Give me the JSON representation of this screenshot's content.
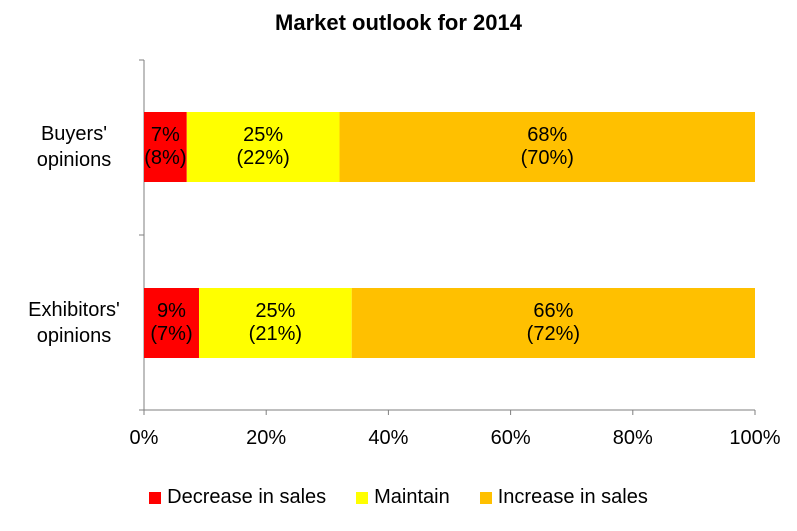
{
  "chart_data": {
    "type": "bar",
    "orientation": "horizontal",
    "stacked": true,
    "title": "Market outlook for 2014",
    "categories": [
      "Buyers' opinions",
      "Exhibitors' opinions"
    ],
    "category_lines": [
      [
        "Buyers'",
        "opinions"
      ],
      [
        "Exhibitors'",
        "opinions"
      ]
    ],
    "series": [
      {
        "name": "Decrease in sales",
        "color": "#FF0000",
        "values": [
          7,
          9
        ],
        "secondary_values": [
          8,
          7
        ]
      },
      {
        "name": "Maintain",
        "color": "#FFFF00",
        "values": [
          25,
          25
        ],
        "secondary_values": [
          22,
          21
        ]
      },
      {
        "name": "Increase in sales",
        "color": "#FFC000",
        "values": [
          68,
          66
        ],
        "secondary_values": [
          70,
          72
        ]
      }
    ],
    "data_labels": [
      [
        [
          "7%",
          "(8%)"
        ],
        [
          "25%",
          "(22%)"
        ],
        [
          "68%",
          "(70%)"
        ]
      ],
      [
        [
          "9%",
          "(7%)"
        ],
        [
          "25%",
          "(21%)"
        ],
        [
          "66%",
          "(72%)"
        ]
      ]
    ],
    "xlim": [
      0,
      100
    ],
    "xticks": [
      "0%",
      "20%",
      "40%",
      "60%",
      "80%",
      "100%"
    ],
    "grid": false,
    "legend_position": "bottom"
  }
}
